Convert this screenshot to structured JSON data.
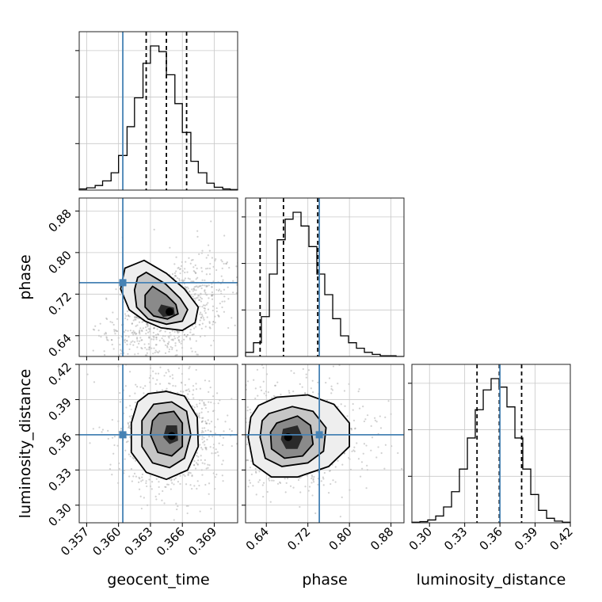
{
  "chart_data": {
    "type": "corner",
    "parameters": [
      {
        "name": "geocent_time",
        "label": "geocent_time",
        "range": [
          0.3563,
          0.3712
        ],
        "ticks": [
          0.357,
          0.36,
          0.363,
          0.366,
          0.369
        ],
        "tick_labels": [
          "0.357",
          "0.360",
          "0.363",
          "0.366",
          "0.369"
        ],
        "truth": 0.3604,
        "quantiles": [
          0.3626,
          0.3645,
          0.3664
        ],
        "hist_y_ticks_count": 3,
        "hist": {
          "bin_edges": [
            0.3563,
            0.357,
            0.3578,
            0.3585,
            0.3593,
            0.36,
            0.3608,
            0.3615,
            0.3623,
            0.363,
            0.3638,
            0.3645,
            0.3653,
            0.366,
            0.3668,
            0.3675,
            0.3683,
            0.369,
            0.3698,
            0.3705,
            0.3712
          ],
          "counts": [
            2,
            4,
            8,
            16,
            30,
            60,
            110,
            160,
            220,
            250,
            240,
            200,
            150,
            100,
            50,
            30,
            12,
            5,
            2,
            1
          ]
        }
      },
      {
        "name": "phase",
        "label": "phase",
        "range": [
          0.6,
          0.905
        ],
        "ticks": [
          0.64,
          0.72,
          0.8,
          0.88
        ],
        "tick_labels": [
          "0.64",
          "0.72",
          "0.80",
          "0.88"
        ],
        "truth": 0.742,
        "quantiles": [
          0.628,
          0.673,
          0.739
        ],
        "hist_y_ticks_count": 3,
        "hist": {
          "bin_edges": [
            0.6,
            0.6153,
            0.6305,
            0.6458,
            0.661,
            0.6763,
            0.6915,
            0.7068,
            0.722,
            0.7373,
            0.7525,
            0.7678,
            0.783,
            0.7983,
            0.8135,
            0.8288,
            0.844,
            0.8593,
            0.8745,
            0.8898,
            0.905
          ],
          "counts": [
            6,
            20,
            58,
            120,
            170,
            200,
            210,
            190,
            160,
            120,
            90,
            55,
            30,
            20,
            12,
            6,
            3,
            1,
            1,
            0
          ]
        }
      },
      {
        "name": "luminosity_distance",
        "label": "luminosity_distance",
        "range": [
          0.285,
          0.42
        ],
        "ticks": [
          0.3,
          0.33,
          0.36,
          0.39,
          0.42
        ],
        "tick_labels": [
          "0.30",
          "0.33",
          "0.36",
          "0.39",
          "0.42"
        ],
        "truth": 0.36,
        "quantiles": [
          0.3405,
          0.3595,
          0.3785
        ],
        "hist_y_ticks_count": 3,
        "hist": {
          "bin_edges": [
            0.285,
            0.2918,
            0.2985,
            0.3053,
            0.312,
            0.3188,
            0.3255,
            0.3323,
            0.339,
            0.3458,
            0.3525,
            0.3593,
            0.366,
            0.3728,
            0.3795,
            0.3863,
            0.393,
            0.3998,
            0.4065,
            0.4133,
            0.42
          ],
          "counts": [
            1,
            2,
            5,
            12,
            28,
            55,
            95,
            150,
            200,
            235,
            255,
            240,
            205,
            150,
            95,
            50,
            22,
            8,
            3,
            1
          ]
        }
      }
    ],
    "pairs": [
      {
        "x": "geocent_time",
        "y": "phase",
        "peak": [
          0.3648,
          0.686
        ],
        "contours": [
          [
            [
              0.3624,
              0.785
            ],
            [
              0.3645,
              0.76
            ],
            [
              0.3662,
              0.73
            ],
            [
              0.3675,
              0.695
            ],
            [
              0.3672,
              0.665
            ],
            [
              0.366,
              0.65
            ],
            [
              0.364,
              0.655
            ],
            [
              0.3625,
              0.668
            ],
            [
              0.361,
              0.69
            ],
            [
              0.3602,
              0.73
            ],
            [
              0.3606,
              0.77
            ]
          ],
          [
            [
              0.3626,
              0.762
            ],
            [
              0.3644,
              0.74
            ],
            [
              0.3658,
              0.712
            ],
            [
              0.3665,
              0.69
            ],
            [
              0.366,
              0.668
            ],
            [
              0.3645,
              0.662
            ],
            [
              0.3628,
              0.672
            ],
            [
              0.3617,
              0.695
            ],
            [
              0.3615,
              0.728
            ],
            [
              0.3618,
              0.752
            ]
          ],
          [
            [
              0.3632,
              0.735
            ],
            [
              0.3645,
              0.718
            ],
            [
              0.3654,
              0.7
            ],
            [
              0.3656,
              0.682
            ],
            [
              0.3646,
              0.672
            ],
            [
              0.3633,
              0.678
            ],
            [
              0.3625,
              0.695
            ],
            [
              0.3625,
              0.718
            ]
          ],
          [
            [
              0.364,
              0.7
            ],
            [
              0.3652,
              0.694
            ],
            [
              0.3653,
              0.68
            ],
            [
              0.3642,
              0.676
            ],
            [
              0.3637,
              0.688
            ]
          ]
        ]
      },
      {
        "x": "geocent_time",
        "y": "luminosity_distance",
        "peak": [
          0.365,
          0.359
        ],
        "contours": [
          [
            [
              0.3628,
              0.395
            ],
            [
              0.3645,
              0.397
            ],
            [
              0.3662,
              0.393
            ],
            [
              0.3674,
              0.375
            ],
            [
              0.3675,
              0.35
            ],
            [
              0.3665,
              0.33
            ],
            [
              0.3645,
              0.322
            ],
            [
              0.3626,
              0.328
            ],
            [
              0.3612,
              0.345
            ],
            [
              0.3612,
              0.37
            ],
            [
              0.3618,
              0.388
            ]
          ],
          [
            [
              0.3633,
              0.386
            ],
            [
              0.365,
              0.388
            ],
            [
              0.3664,
              0.38
            ],
            [
              0.3668,
              0.36
            ],
            [
              0.3662,
              0.34
            ],
            [
              0.3648,
              0.332
            ],
            [
              0.3632,
              0.336
            ],
            [
              0.3622,
              0.35
            ],
            [
              0.3622,
              0.372
            ]
          ],
          [
            [
              0.3638,
              0.378
            ],
            [
              0.3652,
              0.38
            ],
            [
              0.366,
              0.37
            ],
            [
              0.366,
              0.35
            ],
            [
              0.365,
              0.342
            ],
            [
              0.3637,
              0.345
            ],
            [
              0.363,
              0.36
            ],
            [
              0.3632,
              0.372
            ]
          ],
          [
            [
              0.3645,
              0.368
            ],
            [
              0.3655,
              0.368
            ],
            [
              0.3656,
              0.355
            ],
            [
              0.3648,
              0.352
            ],
            [
              0.3642,
              0.358
            ]
          ]
        ]
      },
      {
        "x": "phase",
        "y": "luminosity_distance",
        "peak": [
          0.682,
          0.358
        ],
        "contours": [
          [
            [
              0.625,
              0.385
            ],
            [
              0.66,
              0.392
            ],
            [
              0.72,
              0.394
            ],
            [
              0.77,
              0.386
            ],
            [
              0.8,
              0.37
            ],
            [
              0.8,
              0.35
            ],
            [
              0.76,
              0.333
            ],
            [
              0.7,
              0.324
            ],
            [
              0.65,
              0.324
            ],
            [
              0.615,
              0.335
            ],
            [
              0.605,
              0.358
            ],
            [
              0.61,
              0.375
            ]
          ],
          [
            [
              0.645,
              0.378
            ],
            [
              0.69,
              0.384
            ],
            [
              0.73,
              0.38
            ],
            [
              0.755,
              0.366
            ],
            [
              0.75,
              0.346
            ],
            [
              0.72,
              0.336
            ],
            [
              0.67,
              0.333
            ],
            [
              0.638,
              0.34
            ],
            [
              0.628,
              0.358
            ],
            [
              0.632,
              0.372
            ]
          ],
          [
            [
              0.66,
              0.37
            ],
            [
              0.7,
              0.376
            ],
            [
              0.725,
              0.368
            ],
            [
              0.73,
              0.352
            ],
            [
              0.71,
              0.342
            ],
            [
              0.675,
              0.34
            ],
            [
              0.65,
              0.348
            ],
            [
              0.648,
              0.362
            ]
          ],
          [
            [
              0.672,
              0.365
            ],
            [
              0.7,
              0.368
            ],
            [
              0.71,
              0.358
            ],
            [
              0.7,
              0.348
            ],
            [
              0.678,
              0.348
            ],
            [
              0.668,
              0.356
            ]
          ]
        ]
      }
    ]
  }
}
